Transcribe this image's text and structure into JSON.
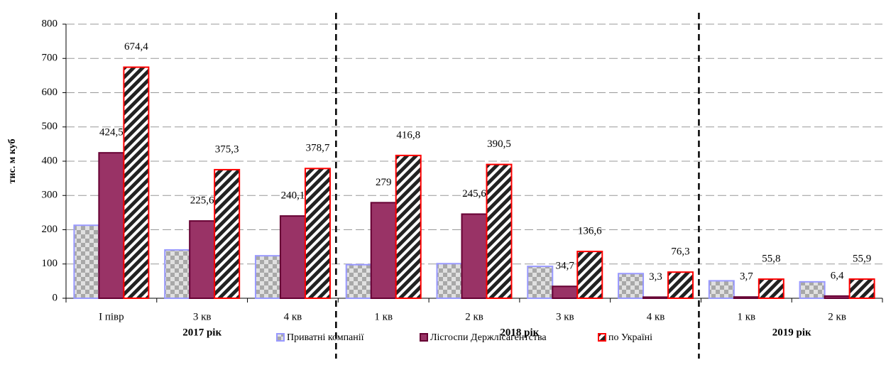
{
  "chart_data": {
    "type": "bar",
    "y_label": "тис. м куб",
    "categories": [
      "І півр",
      "3 кв",
      "4 кв",
      "1 кв",
      "2 кв",
      "3 кв",
      "4 кв",
      "1 кв",
      "2 кв"
    ],
    "groups": [
      {
        "name": "2017 рік",
        "count": 3
      },
      {
        "name": "2018 рік",
        "count": 4
      },
      {
        "name": "2019 рік",
        "count": 2
      }
    ],
    "series": [
      {
        "name": "Приватні компанії",
        "color": "#9999ff",
        "values": [
          213,
          141,
          124,
          98,
          101,
          93,
          72,
          51,
          48
        ]
      },
      {
        "name": "Лісгоспи Держлісагентства",
        "color": "#993366",
        "values": [
          424.5,
          225.6,
          240.1,
          279,
          245.6,
          34.7,
          3.3,
          3.7,
          6.4
        ],
        "value_labels": [
          "424,5",
          "225,6",
          "240,1",
          "279",
          "245,6",
          "34,7",
          "3,3",
          "3,7",
          "6,4"
        ]
      },
      {
        "name": "по Україні",
        "color": "#ff0000",
        "values": [
          674.4,
          375.3,
          378.7,
          416.8,
          390.5,
          136.6,
          76.3,
          55.8,
          55.9
        ],
        "value_labels": [
          "674,4",
          "375,3",
          "378,7",
          "416,8",
          "390,5",
          "136,6",
          "76,3",
          "55,8",
          "55,9"
        ]
      }
    ],
    "ylim": [
      0,
      800
    ],
    "yticks": [
      0,
      100,
      200,
      300,
      400,
      500,
      600,
      700,
      800
    ],
    "grid": true,
    "legend": "bottom"
  }
}
